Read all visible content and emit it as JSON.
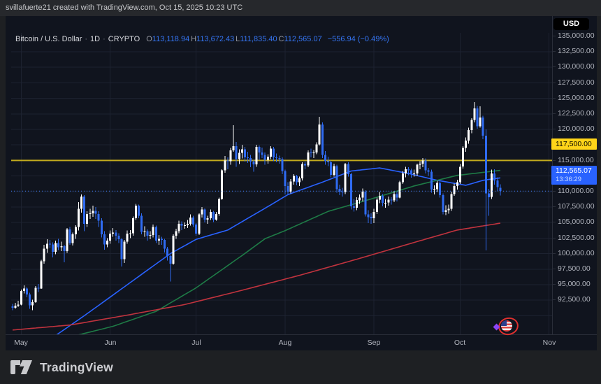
{
  "top_bar": {
    "text": "svillafuerte21 created with TradingView.com, Oct 15, 2025 10:23 UTC"
  },
  "legend": {
    "symbol": "Bitcoin / U.S. Dollar",
    "separator": "·",
    "interval": "1D",
    "exchange": "CRYPTO",
    "open": {
      "label": "O",
      "value": "113,118.94"
    },
    "high": {
      "label": "H",
      "value": "113,672.43"
    },
    "low": {
      "label": "L",
      "value": "111,835.40"
    },
    "close": {
      "label": "C",
      "value": "112,565.07"
    },
    "change": "−556.94 (−0.49%)"
  },
  "currency_button": {
    "label": "USD"
  },
  "price_scale": {
    "ticks": [
      {
        "price": 135000,
        "label": "135,000.00"
      },
      {
        "price": 132500,
        "label": "132,500.00"
      },
      {
        "price": 130000,
        "label": "130,000.00"
      },
      {
        "price": 127500,
        "label": "127,500.00"
      },
      {
        "price": 125000,
        "label": "125,000.00"
      },
      {
        "price": 122500,
        "label": "122,500.00"
      },
      {
        "price": 120000,
        "label": "120,000.00"
      },
      {
        "price": 115000,
        "label": "115,000.00"
      },
      {
        "price": 110000,
        "label": "110,000.00"
      },
      {
        "price": 107500,
        "label": "107,500.00"
      },
      {
        "price": 105000,
        "label": "105,000.00"
      },
      {
        "price": 102500,
        "label": "102,500.00"
      },
      {
        "price": 100000,
        "label": "100,000.00"
      },
      {
        "price": 97500,
        "label": "97,500.00"
      },
      {
        "price": 95000,
        "label": "95,000.00"
      },
      {
        "price": 92500,
        "label": "92,500.00"
      }
    ]
  },
  "time_scale": {
    "months": [
      {
        "label": "May",
        "index": 3
      },
      {
        "label": "Jun",
        "index": 34
      },
      {
        "label": "Jul",
        "index": 64
      },
      {
        "label": "Aug",
        "index": 95
      },
      {
        "label": "Sep",
        "index": 126
      },
      {
        "label": "Oct",
        "index": 156
      },
      {
        "label": "Nov",
        "index": 187
      }
    ]
  },
  "drawn_line_label": {
    "text": "117,500.00",
    "bg": "#FFD519"
  },
  "last_price_label": {
    "price": "112,565.07",
    "countdown": "13:36:29",
    "bg": "#2962FF"
  },
  "sticker": {
    "name": "us-flag-circled-sticker"
  },
  "footer": {
    "brand": "TradingView"
  },
  "chart_data": {
    "type": "candlestick",
    "title": "Bitcoin / U.S. Dollar",
    "exchange": "CRYPTO",
    "interval": "1D",
    "unit": "USD",
    "ohlc_today": {
      "open": 113118.94,
      "high": 113672.43,
      "low": 111835.4,
      "close": 112565.07,
      "change": -556.94,
      "change_pct": -0.49
    },
    "y_axis": {
      "label_min": 92500,
      "label_max": 135000,
      "step": 2500,
      "grid": true
    },
    "x_axis_months": [
      "May",
      "Jun",
      "Jul",
      "Aug",
      "Sep",
      "Oct",
      "Nov"
    ],
    "horizontal_line": {
      "price": 117500,
      "color": "#C2AB1E"
    },
    "last_price_line": {
      "price": 112565.07,
      "color": "#3D78F2",
      "style": "dotted"
    },
    "up_color": "#FFFFFF",
    "down_color": "#2F6BF2",
    "candles": [
      [
        94000,
        94400,
        93400,
        93800
      ],
      [
        93800,
        94600,
        93600,
        94100
      ],
      [
        94100,
        94900,
        93900,
        94300
      ],
      [
        94300,
        96700,
        94200,
        96500
      ],
      [
        96500,
        97400,
        96100,
        96900
      ],
      [
        96900,
        97100,
        95500,
        95900
      ],
      [
        95900,
        96200,
        93600,
        94200
      ],
      [
        94200,
        95100,
        93400,
        94700
      ],
      [
        94700,
        97300,
        94600,
        97000
      ],
      [
        97000,
        97600,
        96300,
        96900
      ],
      [
        96900,
        101500,
        96800,
        101300
      ],
      [
        101300,
        103900,
        100900,
        103300
      ],
      [
        103300,
        104800,
        102600,
        104100
      ],
      [
        104100,
        104700,
        103400,
        104000
      ],
      [
        104000,
        104300,
        101900,
        102800
      ],
      [
        102800,
        104600,
        102400,
        104200
      ],
      [
        104200,
        104900,
        103100,
        103500
      ],
      [
        103500,
        104400,
        102900,
        103700
      ],
      [
        103700,
        103900,
        101100,
        102900
      ],
      [
        102900,
        106600,
        102600,
        106400
      ],
      [
        106400,
        106800,
        103900,
        104200
      ],
      [
        104200,
        105900,
        103800,
        105600
      ],
      [
        105600,
        107100,
        104900,
        106800
      ],
      [
        106800,
        110800,
        106200,
        109700
      ],
      [
        109700,
        112000,
        109100,
        111700
      ],
      [
        111700,
        111900,
        106100,
        107300
      ],
      [
        107300,
        109300,
        106800,
        108900
      ],
      [
        108900,
        109700,
        108100,
        109000
      ],
      [
        109000,
        110200,
        108400,
        109400
      ],
      [
        109400,
        110000,
        108100,
        108900
      ],
      [
        108900,
        109300,
        106800,
        107800
      ],
      [
        107800,
        108200,
        105100,
        105600
      ],
      [
        105600,
        106100,
        103100,
        104000
      ],
      [
        104000,
        105000,
        103500,
        104600
      ],
      [
        104600,
        106200,
        104100,
        105700
      ],
      [
        105700,
        106600,
        105200,
        105900
      ],
      [
        105900,
        106300,
        104600,
        105400
      ],
      [
        105400,
        105800,
        104200,
        104800
      ],
      [
        104800,
        105000,
        100400,
        101600
      ],
      [
        101600,
        104700,
        101000,
        104400
      ],
      [
        104400,
        106200,
        104100,
        105700
      ],
      [
        105700,
        106300,
        105000,
        105800
      ],
      [
        105800,
        108500,
        105400,
        108200
      ],
      [
        108200,
        110500,
        107900,
        110200
      ],
      [
        110200,
        110400,
        108200,
        108600
      ],
      [
        108600,
        109000,
        105600,
        106000
      ],
      [
        106000,
        106900,
        105200,
        106100
      ],
      [
        106100,
        106400,
        104600,
        105400
      ],
      [
        105400,
        106100,
        104800,
        105500
      ],
      [
        105500,
        107200,
        105100,
        106800
      ],
      [
        106800,
        107000,
        104200,
        104600
      ],
      [
        104600,
        105500,
        103900,
        104900
      ],
      [
        104900,
        105200,
        103900,
        104700
      ],
      [
        104700,
        104900,
        102700,
        103300
      ],
      [
        103300,
        103600,
        101400,
        102100
      ],
      [
        102100,
        102300,
        98000,
        100900
      ],
      [
        100900,
        105600,
        100700,
        105400
      ],
      [
        105400,
        106500,
        104900,
        106100
      ],
      [
        106100,
        107800,
        105800,
        107300
      ],
      [
        107300,
        107700,
        106300,
        107000
      ],
      [
        107000,
        107500,
        106500,
        107100
      ],
      [
        107100,
        107900,
        106600,
        107300
      ],
      [
        107300,
        108800,
        107000,
        108300
      ],
      [
        108300,
        108600,
        106800,
        107200
      ],
      [
        107200,
        107400,
        105400,
        105700
      ],
      [
        105700,
        109000,
        105500,
        108800
      ],
      [
        108800,
        110000,
        108300,
        109600
      ],
      [
        109600,
        109800,
        107500,
        108000
      ],
      [
        108000,
        108600,
        107300,
        108200
      ],
      [
        108200,
        109600,
        107900,
        109200
      ],
      [
        109200,
        109400,
        107600,
        108000
      ],
      [
        108000,
        109200,
        107800,
        108900
      ],
      [
        108900,
        111500,
        108600,
        111300
      ],
      [
        111300,
        116100,
        111200,
        115900
      ],
      [
        115900,
        118200,
        115500,
        117500
      ],
      [
        117500,
        118000,
        116100,
        117400
      ],
      [
        117400,
        119500,
        116800,
        119100
      ],
      [
        119100,
        123200,
        118900,
        119800
      ],
      [
        119800,
        120500,
        116500,
        117700
      ],
      [
        117700,
        119300,
        116900,
        118700
      ],
      [
        118700,
        120000,
        117800,
        119300
      ],
      [
        119300,
        119700,
        117300,
        118000
      ],
      [
        118000,
        118900,
        117100,
        117900
      ],
      [
        117900,
        118400,
        116400,
        117300
      ],
      [
        117300,
        117600,
        115700,
        116900
      ],
      [
        116900,
        120000,
        116500,
        119700
      ],
      [
        119700,
        119900,
        117600,
        118800
      ],
      [
        118800,
        119600,
        117900,
        118400
      ],
      [
        118400,
        118800,
        116800,
        117600
      ],
      [
        117600,
        118500,
        117000,
        118100
      ],
      [
        118100,
        119800,
        117700,
        119400
      ],
      [
        119400,
        119700,
        117400,
        118000
      ],
      [
        118000,
        118600,
        117200,
        117900
      ],
      [
        117900,
        118300,
        117000,
        117700
      ],
      [
        117700,
        118000,
        115300,
        115800
      ],
      [
        115800,
        116000,
        112000,
        113400
      ],
      [
        113400,
        114000,
        111900,
        112500
      ],
      [
        112500,
        114500,
        112200,
        114100
      ],
      [
        114100,
        115300,
        113600,
        115000
      ],
      [
        115000,
        115200,
        113500,
        114000
      ],
      [
        114000,
        114900,
        113400,
        114600
      ],
      [
        114600,
        117200,
        114300,
        116900
      ],
      [
        116900,
        117300,
        116100,
        116700
      ],
      [
        116700,
        119100,
        116400,
        118800
      ],
      [
        118800,
        119400,
        118000,
        118700
      ],
      [
        118700,
        119200,
        117900,
        118800
      ],
      [
        118800,
        120400,
        118500,
        120100
      ],
      [
        120100,
        124500,
        119900,
        123300
      ],
      [
        123300,
        123600,
        117900,
        118400
      ],
      [
        118400,
        119000,
        116800,
        117400
      ],
      [
        117400,
        118100,
        116600,
        117200
      ],
      [
        117200,
        117500,
        114800,
        115200
      ],
      [
        115200,
        117000,
        114900,
        116600
      ],
      [
        116600,
        116800,
        112300,
        112900
      ],
      [
        112900,
        113600,
        111900,
        112500
      ],
      [
        112500,
        113100,
        111700,
        112400
      ],
      [
        112400,
        117100,
        112100,
        116900
      ],
      [
        116900,
        117200,
        114900,
        115300
      ],
      [
        115300,
        115500,
        109600,
        110100
      ],
      [
        110100,
        111300,
        109300,
        109900
      ],
      [
        109900,
        111600,
        109500,
        111100
      ],
      [
        111100,
        112000,
        110500,
        111500
      ],
      [
        111500,
        113000,
        110900,
        112500
      ],
      [
        112500,
        112700,
        108500,
        108800
      ],
      [
        108800,
        109500,
        107400,
        108400
      ],
      [
        108400,
        109000,
        107300,
        108200
      ],
      [
        108200,
        109700,
        107400,
        109200
      ],
      [
        109200,
        111500,
        108900,
        111200
      ],
      [
        111200,
        112400,
        110600,
        111800
      ],
      [
        111800,
        112100,
        110100,
        110700
      ],
      [
        110700,
        111300,
        109900,
        110700
      ],
      [
        110700,
        111700,
        110200,
        111200
      ],
      [
        111200,
        111600,
        110400,
        111100
      ],
      [
        111100,
        112600,
        110800,
        112100
      ],
      [
        112100,
        112400,
        110900,
        111500
      ],
      [
        111500,
        114200,
        111400,
        114000
      ],
      [
        114000,
        115800,
        113700,
        115400
      ],
      [
        115400,
        116500,
        114800,
        116100
      ],
      [
        116100,
        116400,
        115100,
        115900
      ],
      [
        115900,
        116200,
        114700,
        115400
      ],
      [
        115400,
        116000,
        114900,
        115400
      ],
      [
        115400,
        117000,
        115000,
        116800
      ],
      [
        116800,
        117400,
        116100,
        117000
      ],
      [
        117000,
        117900,
        116400,
        117500
      ],
      [
        117500,
        117800,
        115400,
        115900
      ],
      [
        115900,
        116300,
        115000,
        115700
      ],
      [
        115700,
        116000,
        112300,
        112800
      ],
      [
        112800,
        113500,
        112000,
        112900
      ],
      [
        112900,
        114200,
        112400,
        113900
      ],
      [
        113900,
        114100,
        111500,
        111900
      ],
      [
        111900,
        112200,
        108800,
        109200
      ],
      [
        109200,
        110300,
        108700,
        109500
      ],
      [
        109500,
        110400,
        108900,
        109700
      ],
      [
        109700,
        112500,
        109400,
        112100
      ],
      [
        112100,
        113800,
        111800,
        113400
      ],
      [
        113400,
        114400,
        112800,
        114000
      ],
      [
        114000,
        116900,
        113700,
        116500
      ],
      [
        116500,
        119800,
        116200,
        119500
      ],
      [
        119500,
        121200,
        118900,
        120700
      ],
      [
        120700,
        122800,
        120200,
        122400
      ],
      [
        122400,
        124300,
        121900,
        124000
      ],
      [
        124000,
        126900,
        123600,
        125900
      ],
      [
        125900,
        126300,
        122600,
        123000
      ],
      [
        123000,
        126200,
        122800,
        124400
      ],
      [
        124400,
        124700,
        120900,
        121500
      ],
      [
        121500,
        122500,
        103000,
        112200
      ],
      [
        112200,
        112900,
        108600,
        111600
      ],
      [
        111600,
        116000,
        111300,
        115400
      ],
      [
        115400,
        116100,
        113600,
        114300
      ],
      [
        114300,
        114800,
        112600,
        113200
      ],
      [
        113118.94,
        113672.43,
        111835.4,
        112565.07
      ]
    ],
    "moving_averages": [
      {
        "name": "MA50",
        "color": "#2962FF",
        "points": [
          [
            14,
            89000
          ],
          [
            25,
            92500
          ],
          [
            40,
            97500
          ],
          [
            55,
            102500
          ],
          [
            64,
            104800
          ],
          [
            75,
            106300
          ],
          [
            88,
            109800
          ],
          [
            96,
            112000
          ],
          [
            108,
            114000
          ],
          [
            118,
            115800
          ],
          [
            128,
            116300
          ],
          [
            138,
            115400
          ],
          [
            148,
            114300
          ],
          [
            158,
            113500
          ],
          [
            164,
            114300
          ],
          [
            170,
            114700
          ]
        ]
      },
      {
        "name": "MA100",
        "color": "#1E7A46",
        "points": [
          [
            22,
            89300
          ],
          [
            35,
            90800
          ],
          [
            50,
            93200
          ],
          [
            64,
            97000
          ],
          [
            80,
            102200
          ],
          [
            88,
            104900
          ],
          [
            95,
            106200
          ],
          [
            110,
            109300
          ],
          [
            125,
            111300
          ],
          [
            140,
            113400
          ],
          [
            155,
            115100
          ],
          [
            170,
            115900
          ]
        ]
      },
      {
        "name": "MA200",
        "color": "#C0333E",
        "points": [
          [
            0,
            90200
          ],
          [
            20,
            91000
          ],
          [
            40,
            92600
          ],
          [
            60,
            94300
          ],
          [
            80,
            96600
          ],
          [
            100,
            99000
          ],
          [
            120,
            101600
          ],
          [
            140,
            104300
          ],
          [
            155,
            106300
          ],
          [
            170,
            107400
          ]
        ]
      }
    ]
  }
}
